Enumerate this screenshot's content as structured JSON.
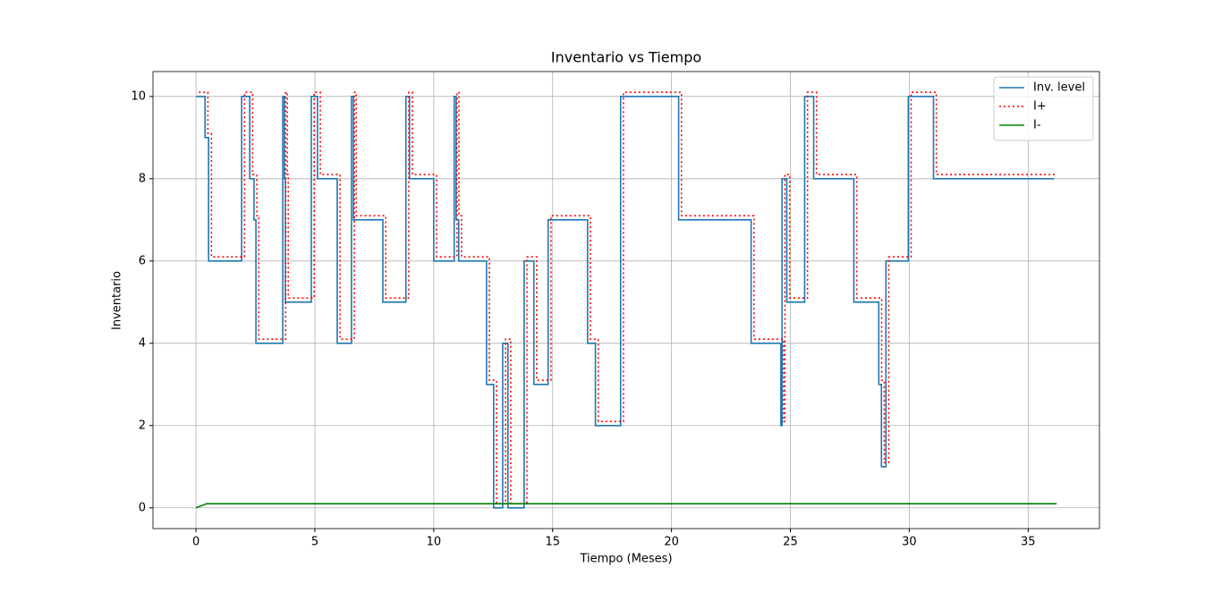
{
  "chart_data": {
    "type": "line",
    "title": "Inventario vs Tiempo",
    "x_label": "Tiempo (Meses)",
    "y_label": "Inventario",
    "xlim": [
      -1.81,
      38.0
    ],
    "ylim": [
      -0.505,
      10.605
    ],
    "xticks": [
      0,
      5,
      10,
      15,
      20,
      25,
      30,
      35
    ],
    "yticks": [
      0,
      2,
      4,
      6,
      8,
      10
    ],
    "grid": true,
    "legend": "upper right",
    "series": [
      {
        "name": "Inv. level",
        "color": "#1f77b4",
        "style": "solid",
        "drawstyle": "steps-post",
        "x": [
          0,
          0.38,
          0.53,
          1.92,
          2.26,
          2.44,
          2.52,
          3.65,
          3.72,
          3.76,
          4.85,
          5.11,
          5.94,
          6.54,
          6.62,
          7.86,
          8.83,
          8.98,
          10.0,
          10.86,
          10.94,
          11.05,
          12.22,
          12.52,
          12.9,
          13.12,
          13.8,
          14.21,
          14.81,
          16.47,
          16.8,
          17.86,
          20.3,
          23.35,
          24.6,
          24.65,
          24.85,
          25.6,
          25.98,
          27.67,
          28.72,
          28.83,
          29.02,
          29.96,
          31.02,
          36.09
        ],
        "values": [
          10,
          9,
          6,
          10,
          8,
          7,
          4,
          10,
          8,
          5,
          10,
          8,
          4,
          10,
          7,
          5,
          10,
          8,
          6,
          10,
          7,
          6,
          3,
          0,
          4,
          0,
          6,
          3,
          7,
          4,
          2,
          10,
          7,
          4,
          2,
          8,
          5,
          10,
          8,
          5,
          3,
          1,
          6,
          10,
          8,
          8
        ]
      },
      {
        "name": "I+",
        "color": "#ff0000",
        "style": "dotted",
        "drawstyle": "steps-post",
        "x": [
          0.12,
          0.5,
          0.65,
          2.04,
          2.38,
          2.56,
          2.64,
          3.77,
          3.84,
          3.88,
          4.97,
          5.23,
          6.06,
          6.66,
          6.74,
          7.98,
          8.95,
          9.1,
          10.12,
          10.98,
          11.06,
          11.17,
          12.34,
          12.64,
          13.02,
          13.24,
          13.92,
          14.33,
          14.93,
          16.59,
          16.92,
          17.98,
          20.42,
          23.47,
          24.72,
          24.77,
          24.97,
          25.72,
          26.1,
          27.79,
          28.84,
          28.95,
          29.14,
          30.08,
          31.14,
          36.21
        ],
        "values": [
          10.1,
          9.1,
          6.1,
          10.1,
          8.1,
          7.1,
          4.1,
          10.1,
          8.1,
          5.1,
          10.1,
          8.1,
          4.1,
          10.1,
          7.1,
          5.1,
          10.1,
          8.1,
          6.1,
          10.1,
          7.1,
          6.1,
          3.1,
          0.1,
          4.1,
          0.1,
          6.1,
          3.1,
          7.1,
          4.1,
          2.1,
          10.1,
          7.1,
          4.1,
          2.1,
          8.1,
          5.1,
          10.1,
          8.1,
          5.1,
          3.1,
          1.1,
          6.1,
          10.1,
          8.1,
          8.1
        ]
      },
      {
        "name": "I-",
        "color": "#008000",
        "style": "solid",
        "drawstyle": "default",
        "x": [
          0,
          0.45,
          36.2
        ],
        "values": [
          0,
          0.1,
          0.1
        ]
      }
    ]
  }
}
